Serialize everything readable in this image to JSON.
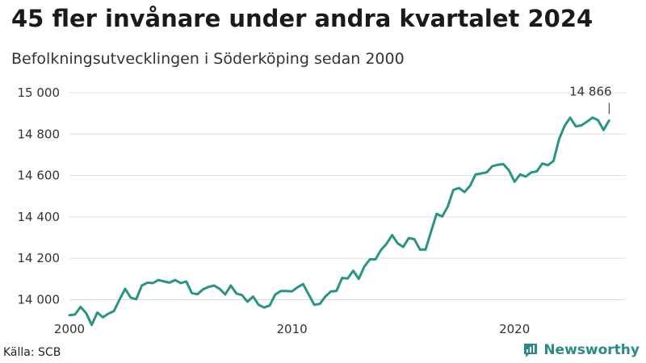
{
  "header": {
    "title": "45 fler invånare under andra kvartalet 2024",
    "subtitle": "Befolkningsutvecklingen i Söderköping sedan 2000"
  },
  "footer": {
    "source": "Källa: SCB",
    "brand": "Newsworthy"
  },
  "colors": {
    "line": "#2a9484",
    "grid": "#dddddd",
    "brand": "#2a8b86"
  },
  "icons": {
    "brand_logo": "bar-chart-speech-bubble-icon"
  },
  "chart_data": {
    "type": "line",
    "title": "45 fler invånare under andra kvartalet 2024",
    "subtitle": "Befolkningsutvecklingen i Söderköping sedan 2000",
    "xlabel": "",
    "ylabel": "",
    "xlim": [
      2000,
      2025
    ],
    "ylim": [
      13920,
      15000
    ],
    "grid": true,
    "x_ticks": [
      2000,
      2010,
      2020
    ],
    "x_tick_labels": [
      "2000",
      "2010",
      "2020"
    ],
    "y_ticks": [
      14000,
      14200,
      14400,
      14600,
      14800,
      15000
    ],
    "y_tick_labels": [
      "14 000",
      "14 200",
      "14 400",
      "14 600",
      "14 800",
      "15 000"
    ],
    "annotation": {
      "x": 2024.25,
      "y": 14866,
      "label": "14 866"
    },
    "series": [
      {
        "x": [
          2000.0,
          2000.25,
          2000.5,
          2000.75,
          2001.0,
          2001.25,
          2001.5,
          2001.75,
          2002.0,
          2002.25,
          2002.5,
          2002.75,
          2003.0,
          2003.25,
          2003.5,
          2003.75,
          2004.0,
          2004.25,
          2004.5,
          2004.75,
          2005.0,
          2005.25,
          2005.5,
          2005.75,
          2006.0,
          2006.25,
          2006.5,
          2006.75,
          2007.0,
          2007.25,
          2007.5,
          2007.75,
          2008.0,
          2008.25,
          2008.5,
          2008.75,
          2009.0,
          2009.25,
          2009.5,
          2009.75,
          2010.0,
          2010.25,
          2010.5,
          2010.75,
          2011.0,
          2011.25,
          2011.5,
          2011.75,
          2012.0,
          2012.25,
          2012.5,
          2012.75,
          2013.0,
          2013.25,
          2013.5,
          2013.75,
          2014.0,
          2014.25,
          2014.5,
          2014.75,
          2015.0,
          2015.25,
          2015.5,
          2015.75,
          2016.0,
          2016.25,
          2016.5,
          2016.75,
          2017.0,
          2017.25,
          2017.5,
          2017.75,
          2018.0,
          2018.25,
          2018.5,
          2018.75,
          2019.0,
          2019.25,
          2019.5,
          2019.75,
          2020.0,
          2020.25,
          2020.5,
          2020.75,
          2021.0,
          2021.25,
          2021.5,
          2021.75,
          2022.0,
          2022.25,
          2022.5,
          2022.75,
          2023.0,
          2023.25,
          2023.5,
          2023.75,
          2024.0,
          2024.25
        ],
        "values": [
          13925,
          13928,
          13965,
          13935,
          13878,
          13938,
          13915,
          13932,
          13945,
          14000,
          14052,
          14010,
          14002,
          14068,
          14082,
          14080,
          14095,
          14088,
          14082,
          14095,
          14080,
          14088,
          14032,
          14026,
          14050,
          14062,
          14068,
          14052,
          14025,
          14068,
          14030,
          14022,
          13990,
          14015,
          13975,
          13962,
          13972,
          14025,
          14042,
          14042,
          14040,
          14060,
          14075,
          14025,
          13975,
          13980,
          14015,
          14040,
          14042,
          14105,
          14102,
          14140,
          14100,
          14160,
          14195,
          14195,
          14240,
          14270,
          14312,
          14272,
          14255,
          14298,
          14292,
          14242,
          14242,
          14330,
          14415,
          14402,
          14450,
          14530,
          14540,
          14520,
          14550,
          14605,
          14610,
          14615,
          14645,
          14652,
          14655,
          14625,
          14570,
          14605,
          14595,
          14615,
          14620,
          14658,
          14650,
          14670,
          14775,
          14840,
          14880,
          14838,
          14842,
          14860,
          14880,
          14868,
          14820,
          14866
        ]
      }
    ]
  }
}
